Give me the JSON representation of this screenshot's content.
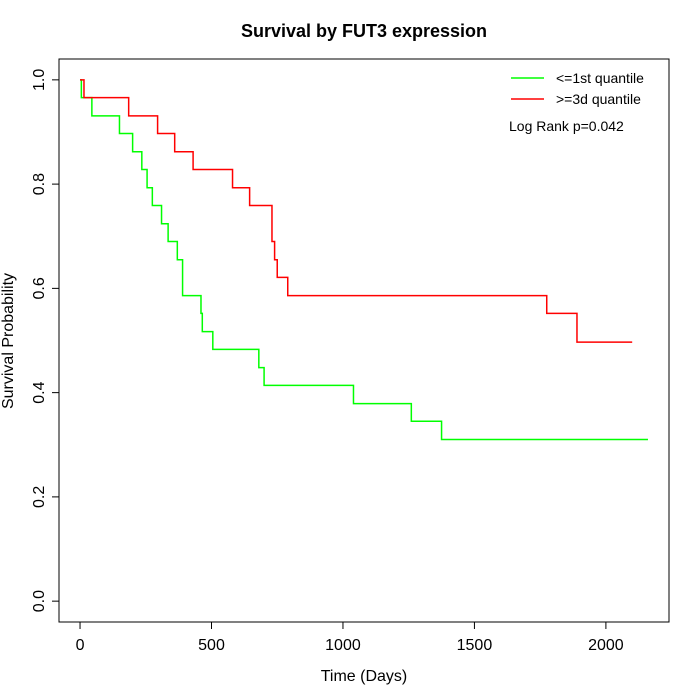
{
  "chart_data": {
    "type": "line",
    "title": "Survival by FUT3 expression",
    "xlabel": "Time (Days)",
    "ylabel": "Survival Probability",
    "xlim": [
      -80,
      2240
    ],
    "ylim": [
      -0.04,
      1.04
    ],
    "xticks": [
      0,
      500,
      1000,
      1500,
      2000
    ],
    "yticks": [
      0.0,
      0.2,
      0.4,
      0.6,
      0.8,
      1.0
    ],
    "xtick_labels": [
      "0",
      "500",
      "1000",
      "1500",
      "2000"
    ],
    "ytick_labels": [
      "0.0",
      "0.2",
      "0.4",
      "0.6",
      "0.8",
      "1.0"
    ],
    "grid": false,
    "legend_position": "top-right",
    "annotation": "Log Rank p=0.042",
    "series": [
      {
        "name": "<=1st quantile",
        "color": "#00ff00",
        "step_x": [
          0,
          5,
          45,
          150,
          200,
          235,
          255,
          275,
          310,
          335,
          370,
          390,
          460,
          465,
          480,
          505,
          680,
          690,
          700,
          1040,
          1260,
          1375,
          2160
        ],
        "step_y": [
          1.0,
          0.966,
          0.931,
          0.897,
          0.862,
          0.828,
          0.793,
          0.759,
          0.724,
          0.69,
          0.655,
          0.586,
          0.552,
          0.517,
          0.517,
          0.483,
          0.448,
          0.448,
          0.414,
          0.379,
          0.345,
          0.31,
          0.31
        ]
      },
      {
        "name": ">=3d quantile",
        "color": "#ff0000",
        "step_x": [
          0,
          15,
          185,
          295,
          360,
          430,
          580,
          645,
          730,
          740,
          750,
          760,
          790,
          1775,
          1890,
          2100
        ],
        "step_y": [
          1.0,
          0.966,
          0.931,
          0.897,
          0.862,
          0.828,
          0.793,
          0.759,
          0.69,
          0.655,
          0.621,
          0.621,
          0.586,
          0.552,
          0.497,
          0.497
        ]
      }
    ]
  }
}
